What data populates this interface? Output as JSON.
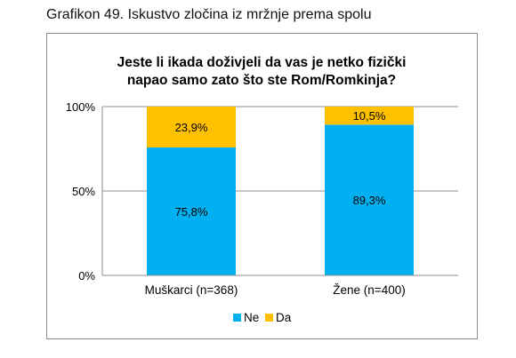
{
  "caption": "Grafikon 49. Iskustvo zločina iz mržnje prema spolu",
  "chart_data": {
    "type": "bar",
    "stacked": true,
    "title_lines": [
      "Jeste li ikada doživjeli da vas je netko fizički",
      "napao samo zato što ste Rom/Romkinja?"
    ],
    "categories": [
      "Muškarci (n=368)",
      "Žene (n=400)"
    ],
    "series": [
      {
        "name": "Ne",
        "values": [
          75.8,
          89.3
        ],
        "labels": [
          "75,8%",
          "89,3%"
        ],
        "color": "#00b0f0"
      },
      {
        "name": "Da",
        "values": [
          23.9,
          10.5
        ],
        "labels": [
          "23,9%",
          "10,5%"
        ],
        "color": "#ffc000"
      }
    ],
    "ylim": [
      0,
      100
    ],
    "yticks": [
      0,
      50,
      100
    ],
    "ytick_labels": [
      "0%",
      "50%",
      "100%"
    ],
    "grid": true,
    "legend_position": "bottom"
  }
}
